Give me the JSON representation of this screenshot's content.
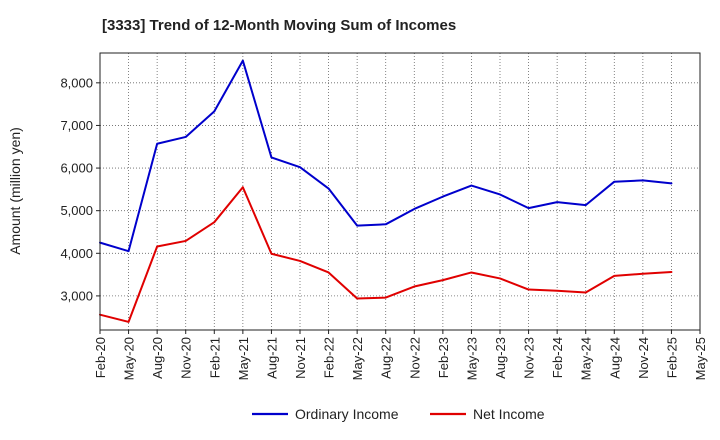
{
  "chart_data": {
    "type": "line",
    "title": "[3333]  Trend of 12-Month Moving Sum of Incomes",
    "xlabel": "",
    "ylabel": "Amount (million yen)",
    "x_tick_labels": [
      "Feb-20",
      "May-20",
      "Aug-20",
      "Nov-20",
      "Feb-21",
      "May-21",
      "Aug-21",
      "Nov-21",
      "Feb-22",
      "May-22",
      "Aug-22",
      "Nov-22",
      "Feb-23",
      "May-23",
      "Aug-23",
      "Nov-23",
      "Feb-24",
      "May-24",
      "Aug-24",
      "Nov-24",
      "Feb-25",
      "May-25"
    ],
    "y_ticks": [
      3000,
      4000,
      5000,
      6000,
      7000,
      8000
    ],
    "y_tick_labels": [
      "3,000",
      "4,000",
      "5,000",
      "6,000",
      "7,000",
      "8,000"
    ],
    "ylim": [
      2200,
      8700
    ],
    "grid": true,
    "legend_position": "bottom-center",
    "series": [
      {
        "name": "Ordinary Income",
        "color": "#0000cc",
        "values": [
          4250,
          4050,
          6570,
          6730,
          7330,
          8520,
          6250,
          6020,
          5520,
          4650,
          4680,
          5040,
          5330,
          5590,
          5380,
          5060,
          5200,
          5130,
          5680,
          5710,
          5640
        ]
      },
      {
        "name": "Net Income",
        "color": "#e00000",
        "values": [
          2560,
          2390,
          4160,
          4290,
          4730,
          5550,
          3990,
          3820,
          3550,
          2940,
          2960,
          3220,
          3370,
          3550,
          3410,
          3150,
          3120,
          3080,
          3470,
          3520,
          3560
        ]
      }
    ]
  }
}
